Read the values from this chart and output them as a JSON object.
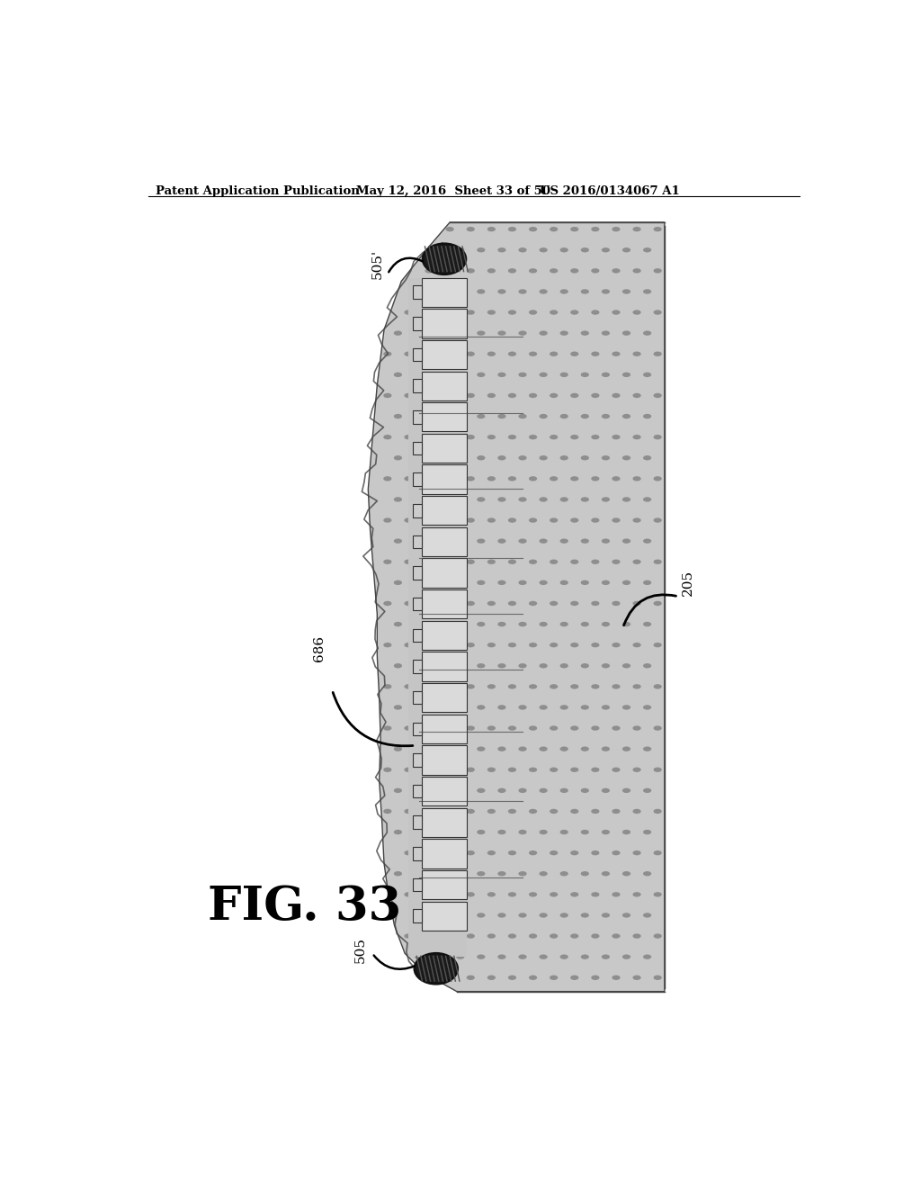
{
  "header_left": "Patent Application Publication",
  "header_mid": "May 12, 2016  Sheet 33 of 50",
  "header_right": "US 2016/0134067 A1",
  "fig_label": "FIG. 33",
  "label_505_prime": "505'",
  "label_205": "205",
  "label_686": "686",
  "label_505": "505",
  "bg_color": "#ffffff",
  "body_fill": "#c8c8c8",
  "spine_fill": "#b8b8b8",
  "block_fill": "#d0d0d0",
  "bolt_fill": "#2a2a2a",
  "dot_color": "#888888",
  "edge_color": "#444444"
}
